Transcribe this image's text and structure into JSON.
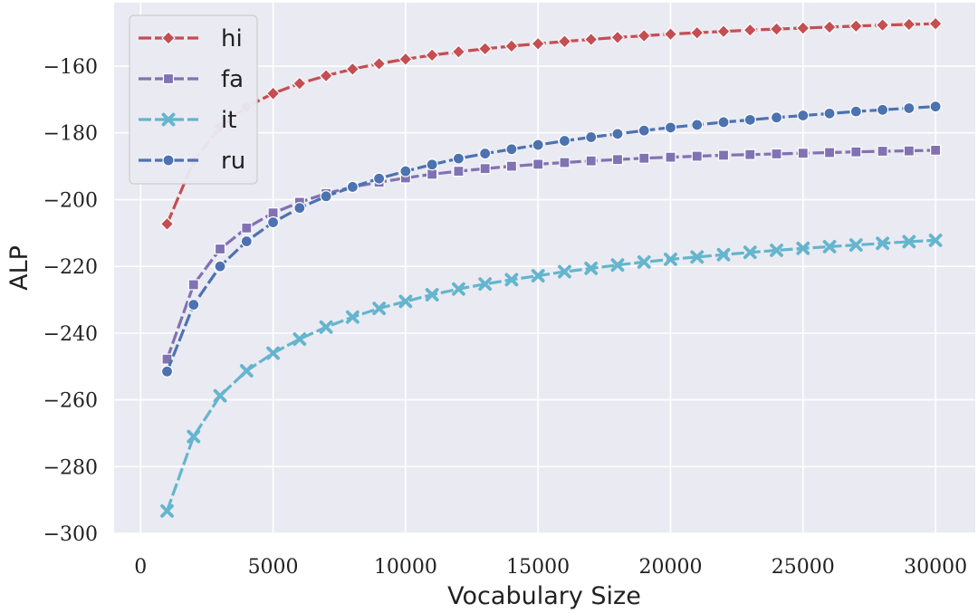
{
  "chart_data": {
    "type": "line",
    "xlabel": "Vocabulary Size",
    "ylabel": "ALP",
    "xlim": [
      -1000,
      31500
    ],
    "ylim": [
      -300,
      -141
    ],
    "x_ticks": [
      0,
      5000,
      10000,
      15000,
      20000,
      25000,
      30000
    ],
    "y_ticks": [
      -300,
      -280,
      -260,
      -240,
      -220,
      -200,
      -180,
      -160
    ],
    "grid": true,
    "legend_position": "top-left",
    "x": [
      1000,
      2000,
      3000,
      4000,
      5000,
      6000,
      7000,
      8000,
      9000,
      10000,
      11000,
      12000,
      13000,
      14000,
      15000,
      16000,
      17000,
      18000,
      19000,
      20000,
      21000,
      22000,
      23000,
      24000,
      25000,
      26000,
      27000,
      28000,
      29000,
      30000
    ],
    "series": [
      {
        "name": "hi",
        "color": "#c44e52",
        "marker": "diamond",
        "values": [
          -207.3,
          -188.5,
          -178.2,
          -172.2,
          -168.2,
          -165.2,
          -162.9,
          -160.9,
          -159.3,
          -157.9,
          -156.7,
          -155.7,
          -154.8,
          -154.0,
          -153.3,
          -152.6,
          -152.0,
          -151.4,
          -150.9,
          -150.4,
          -150.0,
          -149.6,
          -149.2,
          -148.9,
          -148.6,
          -148.3,
          -148.0,
          -147.7,
          -147.5,
          -147.3
        ]
      },
      {
        "name": "fa",
        "color": "#8172b3",
        "marker": "square",
        "values": [
          -247.8,
          -225.5,
          -214.8,
          -208.5,
          -204.0,
          -200.8,
          -198.2,
          -196.2,
          -194.8,
          -193.5,
          -192.4,
          -191.5,
          -190.7,
          -190.0,
          -189.4,
          -188.9,
          -188.4,
          -188.0,
          -187.6,
          -187.3,
          -187.0,
          -186.7,
          -186.5,
          -186.3,
          -186.1,
          -185.9,
          -185.7,
          -185.5,
          -185.4,
          -185.2
        ]
      },
      {
        "name": "it",
        "color": "#64b5cd",
        "marker": "x",
        "values": [
          -293.3,
          -271.0,
          -258.8,
          -251.3,
          -246.0,
          -241.8,
          -238.2,
          -235.2,
          -232.6,
          -230.5,
          -228.5,
          -226.8,
          -225.3,
          -224.0,
          -222.8,
          -221.6,
          -220.6,
          -219.6,
          -218.7,
          -217.9,
          -217.2,
          -216.5,
          -215.8,
          -215.2,
          -214.6,
          -214.1,
          -213.6,
          -213.1,
          -212.6,
          -212.2
        ]
      },
      {
        "name": "ru",
        "color": "#4c72b0",
        "marker": "circle",
        "values": [
          -251.5,
          -231.5,
          -220.0,
          -212.5,
          -206.8,
          -202.5,
          -199.0,
          -196.2,
          -193.7,
          -191.5,
          -189.5,
          -187.7,
          -186.2,
          -184.9,
          -183.6,
          -182.4,
          -181.3,
          -180.3,
          -179.3,
          -178.4,
          -177.6,
          -176.8,
          -176.1,
          -175.4,
          -174.8,
          -174.2,
          -173.6,
          -173.1,
          -172.6,
          -172.1
        ]
      }
    ]
  }
}
